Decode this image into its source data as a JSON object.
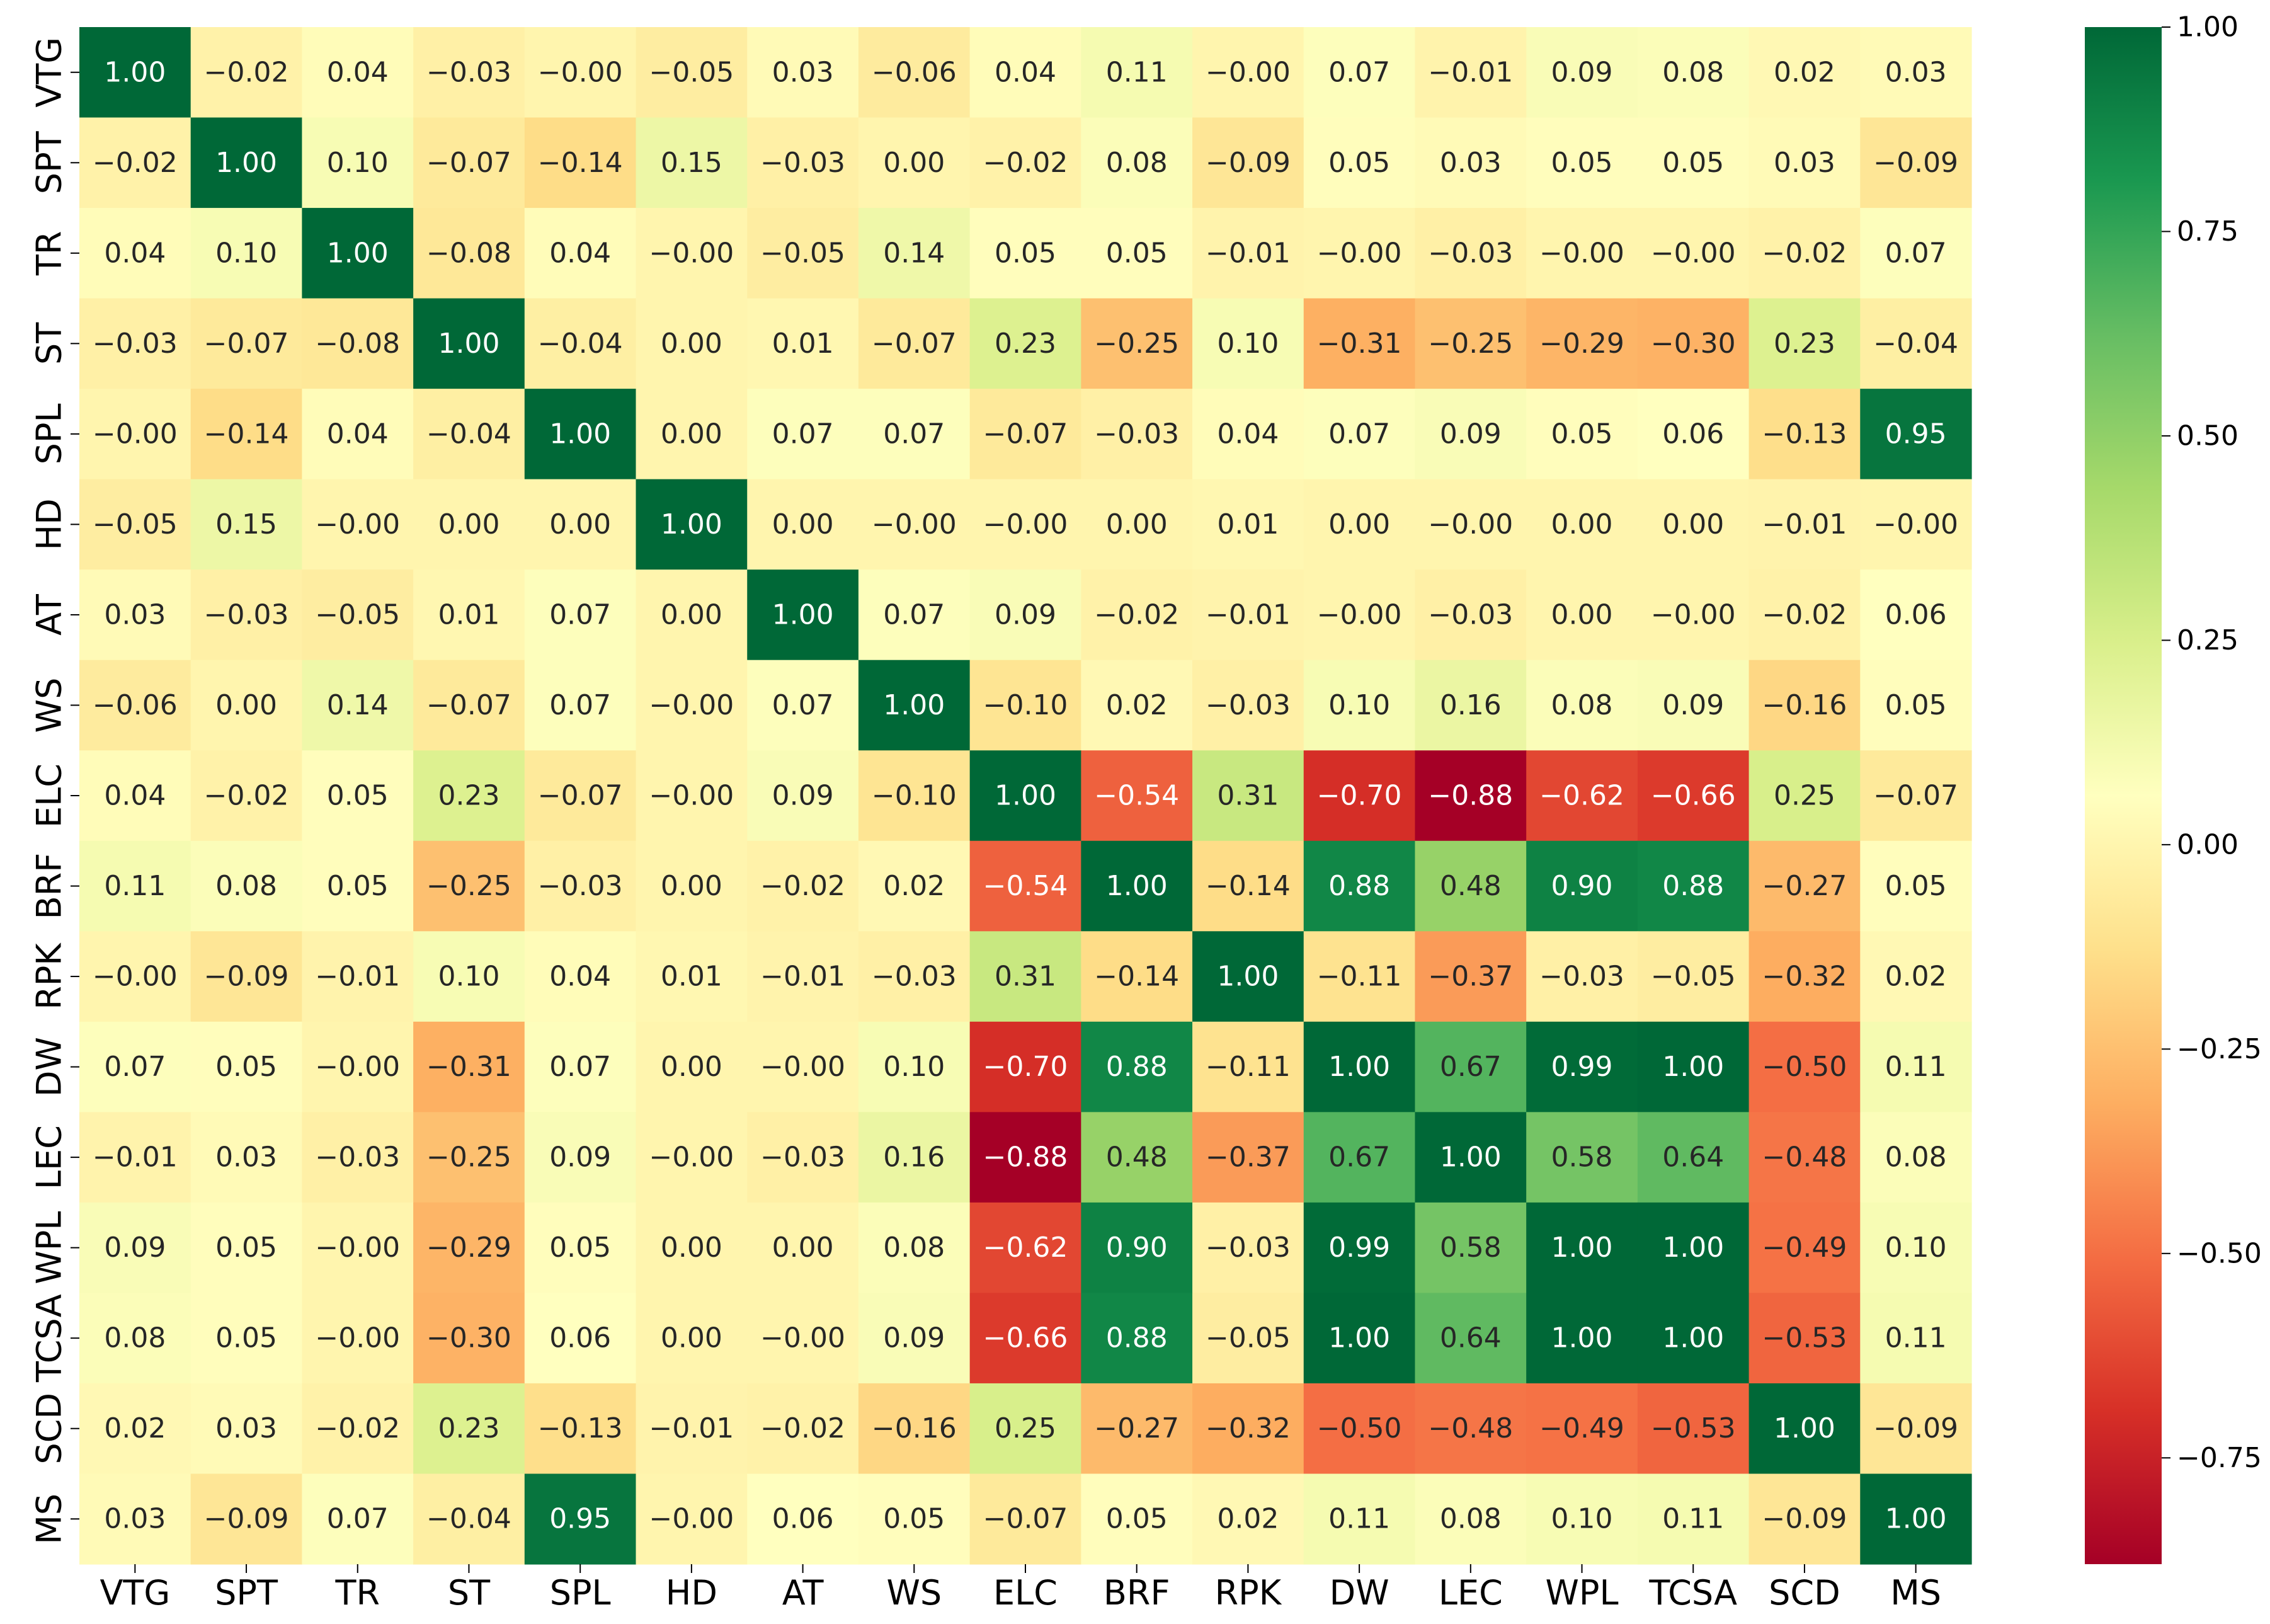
{
  "chart_data": {
    "type": "heatmap",
    "title": "",
    "xlabel": "",
    "ylabel": "",
    "labels": [
      "VTG",
      "SPT",
      "TR",
      "ST",
      "SPL",
      "HD",
      "AT",
      "WS",
      "ELC",
      "BRF",
      "RPK",
      "DW",
      "LEC",
      "WPL",
      "TCSA",
      "SCD",
      "MS"
    ],
    "values": [
      [
        1.0,
        -0.02,
        0.04,
        -0.03,
        -0.0,
        -0.05,
        0.03,
        -0.06,
        0.04,
        0.11,
        -0.0,
        0.07,
        -0.01,
        0.09,
        0.08,
        0.02,
        0.03
      ],
      [
        -0.02,
        1.0,
        0.1,
        -0.07,
        -0.14,
        0.15,
        -0.03,
        0.0,
        -0.02,
        0.08,
        -0.09,
        0.05,
        0.03,
        0.05,
        0.05,
        0.03,
        -0.09
      ],
      [
        0.04,
        0.1,
        1.0,
        -0.08,
        0.04,
        -0.0,
        -0.05,
        0.14,
        0.05,
        0.05,
        -0.01,
        -0.0,
        -0.03,
        -0.0,
        -0.0,
        -0.02,
        0.07
      ],
      [
        -0.03,
        -0.07,
        -0.08,
        1.0,
        -0.04,
        0.0,
        0.01,
        -0.07,
        0.23,
        -0.25,
        0.1,
        -0.31,
        -0.25,
        -0.29,
        -0.3,
        0.23,
        -0.04
      ],
      [
        -0.0,
        -0.14,
        0.04,
        -0.04,
        1.0,
        0.0,
        0.07,
        0.07,
        -0.07,
        -0.03,
        0.04,
        0.07,
        0.09,
        0.05,
        0.06,
        -0.13,
        0.95
      ],
      [
        -0.05,
        0.15,
        -0.0,
        0.0,
        0.0,
        1.0,
        0.0,
        -0.0,
        -0.0,
        0.0,
        0.01,
        0.0,
        -0.0,
        0.0,
        0.0,
        -0.01,
        -0.0
      ],
      [
        0.03,
        -0.03,
        -0.05,
        0.01,
        0.07,
        0.0,
        1.0,
        0.07,
        0.09,
        -0.02,
        -0.01,
        -0.0,
        -0.03,
        0.0,
        -0.0,
        -0.02,
        0.06
      ],
      [
        -0.06,
        0.0,
        0.14,
        -0.07,
        0.07,
        -0.0,
        0.07,
        1.0,
        -0.1,
        0.02,
        -0.03,
        0.1,
        0.16,
        0.08,
        0.09,
        -0.16,
        0.05
      ],
      [
        0.04,
        -0.02,
        0.05,
        0.23,
        -0.07,
        -0.0,
        0.09,
        -0.1,
        1.0,
        -0.54,
        0.31,
        -0.7,
        -0.88,
        -0.62,
        -0.66,
        0.25,
        -0.07
      ],
      [
        0.11,
        0.08,
        0.05,
        -0.25,
        -0.03,
        0.0,
        -0.02,
        0.02,
        -0.54,
        1.0,
        -0.14,
        0.88,
        0.48,
        0.9,
        0.88,
        -0.27,
        0.05
      ],
      [
        -0.0,
        -0.09,
        -0.01,
        0.1,
        0.04,
        0.01,
        -0.01,
        -0.03,
        0.31,
        -0.14,
        1.0,
        -0.11,
        -0.37,
        -0.03,
        -0.05,
        -0.32,
        0.02
      ],
      [
        0.07,
        0.05,
        -0.0,
        -0.31,
        0.07,
        0.0,
        -0.0,
        0.1,
        -0.7,
        0.88,
        -0.11,
        1.0,
        0.67,
        0.99,
        1.0,
        -0.5,
        0.11
      ],
      [
        -0.01,
        0.03,
        -0.03,
        -0.25,
        0.09,
        -0.0,
        -0.03,
        0.16,
        -0.88,
        0.48,
        -0.37,
        0.67,
        1.0,
        0.58,
        0.64,
        -0.48,
        0.08
      ],
      [
        0.09,
        0.05,
        -0.0,
        -0.29,
        0.05,
        0.0,
        0.0,
        0.08,
        -0.62,
        0.9,
        -0.03,
        0.99,
        0.58,
        1.0,
        1.0,
        -0.49,
        0.1
      ],
      [
        0.08,
        0.05,
        -0.0,
        -0.3,
        0.06,
        0.0,
        -0.0,
        0.09,
        -0.66,
        0.88,
        -0.05,
        1.0,
        0.64,
        1.0,
        1.0,
        -0.53,
        0.11
      ],
      [
        0.02,
        0.03,
        -0.02,
        0.23,
        -0.13,
        -0.01,
        -0.02,
        -0.16,
        0.25,
        -0.27,
        -0.32,
        -0.5,
        -0.48,
        -0.49,
        -0.53,
        1.0,
        -0.09
      ],
      [
        0.03,
        -0.09,
        0.07,
        -0.04,
        0.95,
        -0.0,
        0.06,
        0.05,
        -0.07,
        0.05,
        0.02,
        0.11,
        0.08,
        0.1,
        0.11,
        -0.09,
        1.0
      ]
    ],
    "colorbar": {
      "colormap": "RdYlGn",
      "vmin": -0.88,
      "vmax": 1.0,
      "ticks": [
        1.0,
        0.75,
        0.5,
        0.25,
        0.0,
        -0.25,
        -0.5,
        -0.75
      ],
      "tick_labels": [
        "1.00",
        "0.75",
        "0.50",
        "0.25",
        "0.00",
        "−0.25",
        "−0.50",
        "−0.75"
      ]
    },
    "annotation_format": "2 decimals, minus shown as −"
  }
}
